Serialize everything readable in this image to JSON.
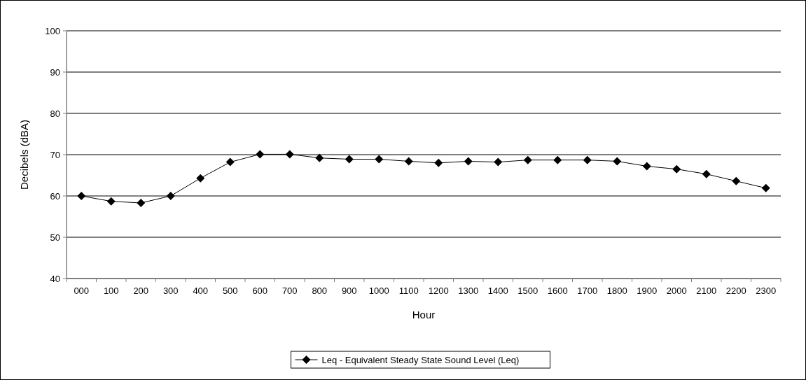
{
  "chart_data": {
    "type": "line",
    "xlabel": "Hour",
    "ylabel": "Decibels (dBA)",
    "categories": [
      "000",
      "100",
      "200",
      "300",
      "400",
      "500",
      "600",
      "700",
      "800",
      "900",
      "1000",
      "1100",
      "1200",
      "1300",
      "1400",
      "1500",
      "1600",
      "1700",
      "1800",
      "1900",
      "2000",
      "2100",
      "2200",
      "2300"
    ],
    "series": [
      {
        "name": "Leq - Equivalent Steady State Sound Level (Leq)",
        "color": "#000000",
        "values": [
          60,
          58.7,
          58.3,
          60,
          64.3,
          68.2,
          70.1,
          70.1,
          69.2,
          68.9,
          68.9,
          68.4,
          68.0,
          68.4,
          68.2,
          68.7,
          68.7,
          68.7,
          68.4,
          67.2,
          66.5,
          65.3,
          63.6,
          61.9
        ]
      }
    ],
    "ylim": [
      40,
      100
    ],
    "yticks": [
      40,
      50,
      60,
      70,
      80,
      90,
      100
    ],
    "grid": "y",
    "legend": "bottom",
    "marker": "diamond",
    "line_style": "solid"
  }
}
